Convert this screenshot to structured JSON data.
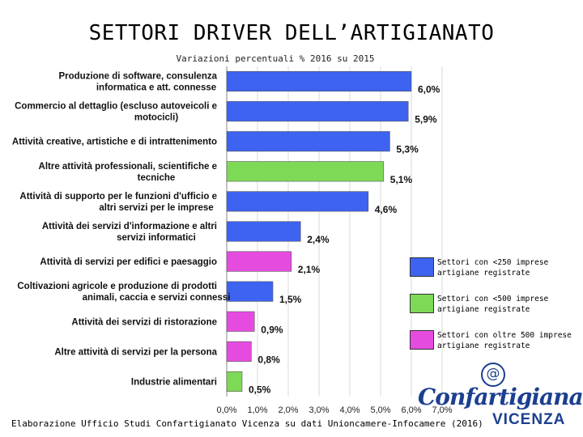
{
  "header": {
    "title": "SETTORI DRIVER DELL’ARTIGIANATO",
    "subtitle": "Variazioni percentuali % 2016 su 2015"
  },
  "footer": {
    "note": "Elaborazione Ufficio Studi Confartigianato Vicenza su dati Unioncamere-Infocamere (2016)"
  },
  "logo": {
    "name": "Confartigianato",
    "city": "VICENZA",
    "symbol": "@"
  },
  "colors": {
    "blue": "#3d63f0",
    "green": "#7ed957",
    "magenta": "#e64be0",
    "grid": "#d9d9d9"
  },
  "legend": [
    {
      "color_key": "blue",
      "label": "Settori con <250 imprese\nartigiane registrate"
    },
    {
      "color_key": "green",
      "label": "Settori con <500 imprese\nartigiane registrate"
    },
    {
      "color_key": "magenta",
      "label": "Settori con oltre 500 imprese\nartigiane registrate"
    }
  ],
  "chart_data": {
    "type": "bar",
    "orientation": "horizontal",
    "title": "SETTORI DRIVER DELL’ARTIGIANATO",
    "subtitle": "Variazioni percentuali % 2016 su 2015",
    "xlim": [
      0,
      7
    ],
    "x_ticks": [
      "0,0%",
      "1,0%",
      "2,0%",
      "3,0%",
      "4,0%",
      "5,0%",
      "6,0%",
      "7,0%"
    ],
    "grid": true,
    "legend_position": "right",
    "categories": [
      {
        "label": "Produzione di software, consulenza\ninformatica e att. connesse",
        "value": 6.0,
        "value_label": "6,0%",
        "group": "blue"
      },
      {
        "label": "Commercio al dettaglio (escluso autoveicoli e\nmotocicli)",
        "value": 5.9,
        "value_label": "5,9%",
        "group": "blue"
      },
      {
        "label": "Attività creative, artistiche e di intrattenimento",
        "value": 5.3,
        "value_label": "5,3%",
        "group": "blue"
      },
      {
        "label": "Altre attività professionali, scientifiche e\ntecniche",
        "value": 5.1,
        "value_label": "5,1%",
        "group": "green"
      },
      {
        "label": "Attività di supporto per le funzioni d'ufficio e\naltri servizi per le imprese",
        "value": 4.6,
        "value_label": "4,6%",
        "group": "blue"
      },
      {
        "label": "Attività dei servizi d'informazione e altri\nservizi informatici",
        "value": 2.4,
        "value_label": "2,4%",
        "group": "blue"
      },
      {
        "label": "Attività di servizi per edifici e paesaggio",
        "value": 2.1,
        "value_label": "2,1%",
        "group": "magenta"
      },
      {
        "label": "Coltivazioni agricole e produzione di prodotti\nanimali, caccia e servizi connessi",
        "value": 1.5,
        "value_label": "1,5%",
        "group": "blue"
      },
      {
        "label": "Attività dei servizi di ristorazione",
        "value": 0.9,
        "value_label": "0,9%",
        "group": "magenta"
      },
      {
        "label": "Altre attività di servizi per la persona",
        "value": 0.8,
        "value_label": "0,8%",
        "group": "magenta"
      },
      {
        "label": "Industrie alimentari",
        "value": 0.5,
        "value_label": "0,5%",
        "group": "green"
      }
    ]
  }
}
